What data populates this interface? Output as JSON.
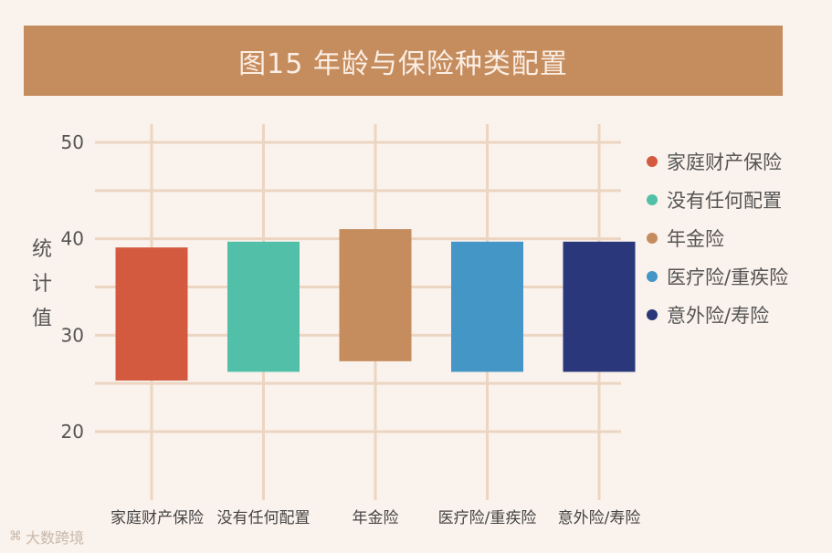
{
  "title": "图15 年龄与保险种类配置",
  "ylabel_chars": [
    "统",
    "计",
    "值"
  ],
  "watermark": "大数跨境",
  "colors": {
    "title_bg": "#c58c5e",
    "grid": "#ecd5c1",
    "series": [
      "#d35a3f",
      "#52c0a8",
      "#c58c5e",
      "#4396c5",
      "#2a377a"
    ]
  },
  "chart_data": {
    "type": "bar",
    "subtype": "floating-range",
    "categories": [
      "家庭财产保险",
      "没有任何配置",
      "年金险",
      "医疗险/重疾险",
      "意外险/寿险"
    ],
    "legend": [
      "家庭财产保险",
      "没有任何配置",
      "年金险",
      "医疗险/重疾险",
      "意外险/寿险"
    ],
    "legend_position": "right",
    "ranges": [
      {
        "low": 25.3,
        "high": 39.1
      },
      {
        "low": 26.2,
        "high": 39.7
      },
      {
        "low": 27.3,
        "high": 41.0
      },
      {
        "low": 26.2,
        "high": 39.7
      },
      {
        "low": 26.2,
        "high": 39.7
      }
    ],
    "ylabel": "统计值",
    "yticks": [
      20,
      30,
      40,
      50
    ],
    "ylim": [
      20,
      50
    ],
    "grid": true
  }
}
